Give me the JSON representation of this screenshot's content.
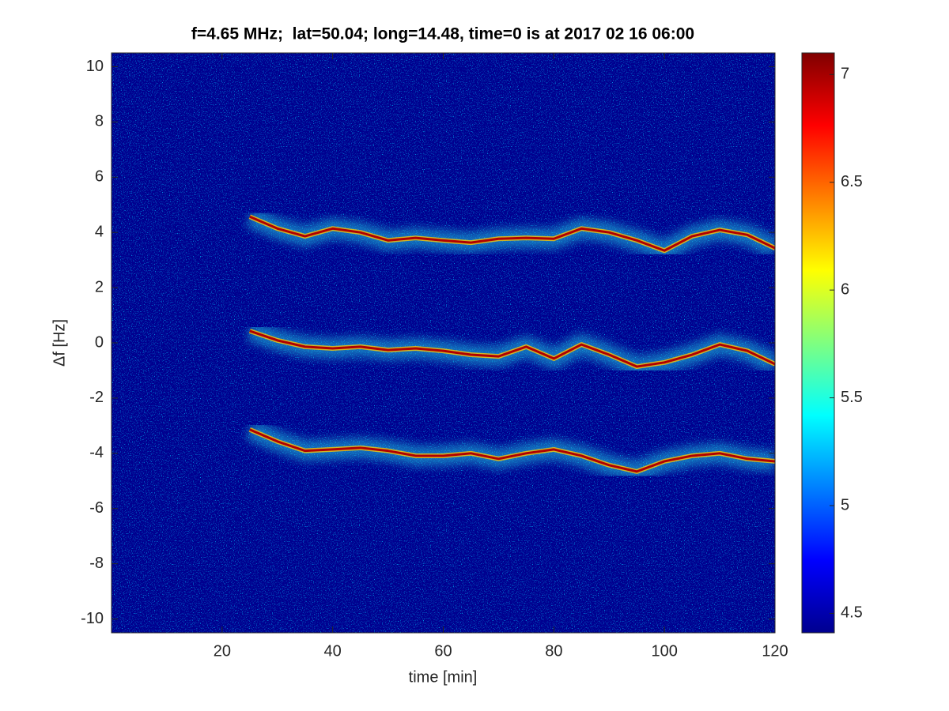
{
  "chart_data": {
    "type": "spectrogram",
    "title": "f=4.65 MHz;  lat=50.04; long=14.48, time=0 is at 2017 02 16 06:00",
    "x_label": "time [min]",
    "y_label": "Δf [Hz]",
    "xlim": [
      0,
      120
    ],
    "xticks": [
      20,
      40,
      60,
      80,
      100,
      120
    ],
    "ylim": [
      -10.5,
      10.5
    ],
    "yticks": [
      -10,
      -8,
      -6,
      -4,
      -2,
      0,
      2,
      4,
      6,
      8,
      10
    ],
    "clim": [
      4.41,
      7.1
    ],
    "cticks": [
      4.5,
      5,
      5.5,
      6,
      6.5,
      7
    ],
    "grid": false,
    "x": [
      25,
      30,
      35,
      40,
      45,
      50,
      55,
      60,
      65,
      70,
      75,
      80,
      85,
      90,
      95,
      100,
      105,
      110,
      115,
      120
    ],
    "series": [
      {
        "color": "#b00000",
        "values": [
          4.57,
          4.14,
          3.86,
          4.14,
          4.0,
          3.71,
          3.8,
          3.71,
          3.63,
          3.77,
          3.8,
          3.77,
          4.14,
          4.0,
          3.71,
          3.34,
          3.86,
          4.09,
          3.91,
          3.43
        ]
      },
      {
        "color": "#b00000",
        "values": [
          0.43,
          0.09,
          -0.14,
          -0.2,
          -0.14,
          -0.26,
          -0.2,
          -0.29,
          -0.43,
          -0.49,
          -0.14,
          -0.57,
          -0.06,
          -0.43,
          -0.86,
          -0.71,
          -0.43,
          -0.06,
          -0.29,
          -0.77
        ]
      },
      {
        "color": "#b00000",
        "values": [
          -3.14,
          -3.57,
          -3.91,
          -3.86,
          -3.8,
          -3.91,
          -4.09,
          -4.09,
          -4.0,
          -4.2,
          -4.0,
          -3.86,
          -4.09,
          -4.43,
          -4.66,
          -4.29,
          -4.09,
          -4.0,
          -4.2,
          -4.29
        ]
      }
    ]
  }
}
